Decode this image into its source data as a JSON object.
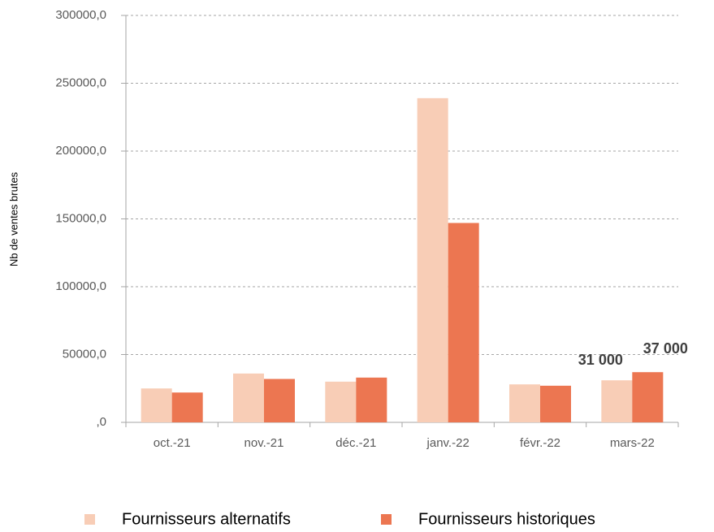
{
  "chart_data": {
    "type": "bar",
    "y_axis_label": "Nb de ventes brutes",
    "categories": [
      "oct.-21",
      "nov.-21",
      "déc.-21",
      "janv.-22",
      "févr.-22",
      "mars-22"
    ],
    "series": [
      {
        "name": "Fournisseurs alternatifs",
        "color": "#f8cdb6",
        "values": [
          25000,
          36000,
          30000,
          239000,
          28000,
          31000
        ],
        "value_labels": [
          null,
          null,
          null,
          null,
          null,
          "31 000"
        ]
      },
      {
        "name": "Fournisseurs historiques",
        "color": "#ec7651",
        "values": [
          22000,
          32000,
          33000,
          147000,
          27000,
          37000
        ],
        "value_labels": [
          null,
          null,
          null,
          null,
          null,
          "37 000"
        ]
      }
    ],
    "ylim": [
      0,
      300000
    ],
    "yticks": [
      {
        "value": 0,
        "label": ",0"
      },
      {
        "value": 50000,
        "label": "50000,0"
      },
      {
        "value": 100000,
        "label": "100000,0"
      },
      {
        "value": 150000,
        "label": "150000,0"
      },
      {
        "value": 200000,
        "label": "200000,0"
      },
      {
        "value": 250000,
        "label": "250000,0"
      },
      {
        "value": 300000,
        "label": "300000,0"
      }
    ],
    "grid": true,
    "legend": "bottom"
  }
}
